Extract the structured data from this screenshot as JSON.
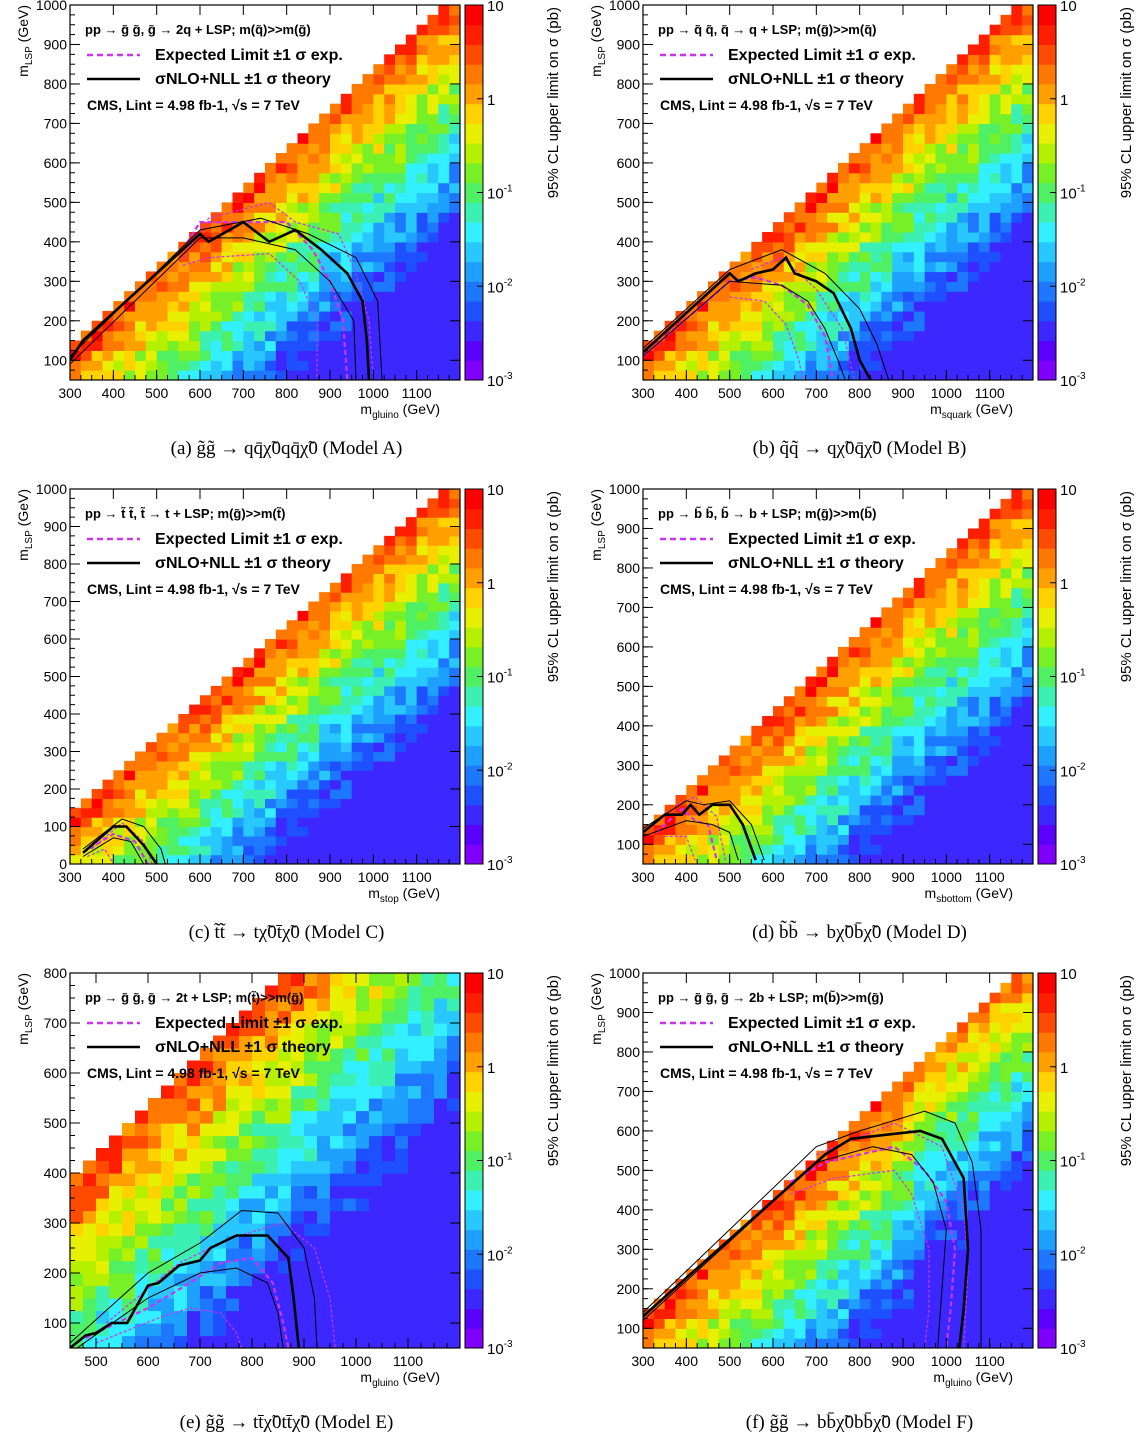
{
  "colorbar": {
    "title": "95% CL upper limit on σ (pb)",
    "tick_labels": [
      "10",
      "1",
      "10-1",
      "10-2",
      "10-3"
    ],
    "log_scale": true,
    "range": [
      0.001,
      10
    ],
    "colors": [
      "#8000ff",
      "#5a00ff",
      "#3c28ff",
      "#1e50ff",
      "#1e78ff",
      "#1ea0ff",
      "#28c8ff",
      "#32f0ff",
      "#3cf0b4",
      "#50f064",
      "#78f028",
      "#b4f000",
      "#e6f000",
      "#ffd200",
      "#ffa000",
      "#ff7800",
      "#ff4b00",
      "#ff1e00",
      "#ff0000"
    ]
  },
  "legend": {
    "expected": "Expected Limit ±1 σ exp.",
    "theory": "σNLO+NLL ±1 σ theory",
    "cms": "CMS, Lint = 4.98 fb-1, √s = 7 TeV",
    "expected_color": "#cc33ee",
    "theory_color": "#000000"
  },
  "charts": [
    {
      "id": "a",
      "process": "pp → g̃ g̃, g̃ → 2q + LSP; m(q̃)>>m(g̃)",
      "xlabel": "mgluino (GeV)",
      "ylabel": "mLSP (GeV)",
      "xlim": [
        300,
        1200
      ],
      "ylim": [
        50,
        1000
      ],
      "xticks": [
        "300",
        "400",
        "500",
        "600",
        "700",
        "800",
        "900",
        "1000",
        "1100"
      ],
      "yticks": [
        "100",
        "200",
        "300",
        "400",
        "500",
        "600",
        "700",
        "800",
        "900",
        "1000"
      ],
      "caption": "(a) g̃g̃ → qq̄χ̃0qq̄χ̃0 (Model A)"
    },
    {
      "id": "b",
      "process": "pp → q̃ q̃, q̃ → q + LSP; m(g̃)>>m(q̃)",
      "xlabel": "msquark (GeV)",
      "ylabel": "mLSP (GeV)",
      "xlim": [
        300,
        1200
      ],
      "ylim": [
        50,
        1000
      ],
      "xticks": [
        "300",
        "400",
        "500",
        "600",
        "700",
        "800",
        "900",
        "1000",
        "1100"
      ],
      "yticks": [
        "100",
        "200",
        "300",
        "400",
        "500",
        "600",
        "700",
        "800",
        "900",
        "1000"
      ],
      "caption": "(b) q̃q̃ → qχ̃0q̄χ̃0 (Model B)"
    },
    {
      "id": "c",
      "process": "pp → t̃ t̃, t̃ → t + LSP; m(g̃)>>m(t̃)",
      "xlabel": "mstop (GeV)",
      "ylabel": "mLSP (GeV)",
      "xlim": [
        300,
        1200
      ],
      "ylim": [
        0,
        1000
      ],
      "xticks": [
        "300",
        "400",
        "500",
        "600",
        "700",
        "800",
        "900",
        "1000",
        "1100"
      ],
      "yticks": [
        "0",
        "100",
        "200",
        "300",
        "400",
        "500",
        "600",
        "700",
        "800",
        "900",
        "1000"
      ],
      "caption": "(c) t̃t̃ → tχ̃0t̄χ̃0 (Model C)"
    },
    {
      "id": "d",
      "process": "pp → b̃ b̃, b̃ → b + LSP; m(g̃)>>m(b̃)",
      "xlabel": "msbottom (GeV)",
      "ylabel": "mLSP (GeV)",
      "xlim": [
        300,
        1200
      ],
      "ylim": [
        50,
        1000
      ],
      "xticks": [
        "300",
        "400",
        "500",
        "600",
        "700",
        "800",
        "900",
        "1000",
        "1100"
      ],
      "yticks": [
        "100",
        "200",
        "300",
        "400",
        "500",
        "600",
        "700",
        "800",
        "900",
        "1000"
      ],
      "caption": "(d) b̃b̃ → bχ̃0b̄χ̃0 (Model D)"
    },
    {
      "id": "e",
      "process": "pp → g̃ g̃, g̃ → 2t + LSP; m(t̃)>>m(g̃)",
      "xlabel": "mgluino (GeV)",
      "ylabel": "mLSP (GeV)",
      "xlim": [
        450,
        1200
      ],
      "ylim": [
        50,
        800
      ],
      "xticks": [
        "500",
        "600",
        "700",
        "800",
        "900",
        "1000",
        "1100"
      ],
      "yticks": [
        "100",
        "200",
        "300",
        "400",
        "500",
        "600",
        "700",
        "800"
      ],
      "caption": "(e) g̃g̃ → tt̄χ̃0tt̄χ̃0 (Model E)"
    },
    {
      "id": "f",
      "process": "pp → g̃ g̃, g̃ → 2b + LSP; m(b̃)>>m(g̃)",
      "xlabel": "mgluino (GeV)",
      "ylabel": "mLSP (GeV)",
      "xlim": [
        300,
        1200
      ],
      "ylim": [
        50,
        1000
      ],
      "xticks": [
        "300",
        "400",
        "500",
        "600",
        "700",
        "800",
        "900",
        "1000",
        "1100"
      ],
      "yticks": [
        "100",
        "200",
        "300",
        "400",
        "500",
        "600",
        "700",
        "800",
        "900",
        "1000"
      ],
      "caption": "(f) g̃g̃ → bb̄χ̃0bb̄χ̃0 (Model F)"
    }
  ],
  "chart_data": [
    {
      "type": "heatmap",
      "panel": "a",
      "diag_offset": 200,
      "zrange": [
        0.001,
        10
      ],
      "theory": [
        [
          300,
          100
        ],
        [
          330,
          150
        ],
        [
          600,
          420
        ],
        [
          620,
          400
        ],
        [
          700,
          450
        ],
        [
          760,
          400
        ],
        [
          820,
          430
        ],
        [
          880,
          380
        ],
        [
          940,
          320
        ],
        [
          975,
          250
        ],
        [
          985,
          150
        ],
        [
          990,
          50
        ]
      ],
      "theory_up": [
        [
          300,
          110
        ],
        [
          600,
          430
        ],
        [
          740,
          460
        ],
        [
          850,
          420
        ],
        [
          960,
          360
        ],
        [
          1010,
          250
        ],
        [
          1020,
          50
        ]
      ],
      "theory_down": [
        [
          300,
          90
        ],
        [
          600,
          410
        ],
        [
          700,
          410
        ],
        [
          820,
          380
        ],
        [
          900,
          300
        ],
        [
          955,
          200
        ],
        [
          960,
          50
        ]
      ],
      "expected": [
        [
          560,
          380
        ],
        [
          600,
          450
        ],
        [
          800,
          450
        ],
        [
          860,
          380
        ],
        [
          900,
          300
        ],
        [
          930,
          200
        ],
        [
          940,
          50
        ]
      ],
      "expected_up": [
        [
          560,
          360
        ],
        [
          620,
          460
        ],
        [
          760,
          500
        ],
        [
          820,
          450
        ],
        [
          920,
          420
        ],
        [
          960,
          320
        ],
        [
          990,
          200
        ],
        [
          1000,
          50
        ]
      ],
      "expected_down": [
        [
          560,
          340
        ],
        [
          620,
          360
        ],
        [
          760,
          370
        ],
        [
          830,
          300
        ],
        [
          870,
          200
        ],
        [
          870,
          50
        ]
      ]
    },
    {
      "type": "heatmap",
      "panel": "b",
      "diag_offset": 200,
      "zrange": [
        0.001,
        10
      ],
      "theory": [
        [
          300,
          120
        ],
        [
          500,
          320
        ],
        [
          520,
          300
        ],
        [
          560,
          320
        ],
        [
          600,
          330
        ],
        [
          630,
          360
        ],
        [
          650,
          320
        ],
        [
          700,
          300
        ],
        [
          740,
          270
        ],
        [
          780,
          180
        ],
        [
          800,
          100
        ],
        [
          830,
          40
        ]
      ],
      "theory_up": [
        [
          300,
          130
        ],
        [
          500,
          330
        ],
        [
          620,
          380
        ],
        [
          720,
          320
        ],
        [
          800,
          230
        ],
        [
          840,
          140
        ],
        [
          870,
          40
        ]
      ],
      "theory_down": [
        [
          300,
          110
        ],
        [
          500,
          300
        ],
        [
          620,
          290
        ],
        [
          680,
          250
        ],
        [
          720,
          180
        ],
        [
          750,
          100
        ],
        [
          770,
          40
        ]
      ],
      "expected": [
        [
          300,
          110
        ],
        [
          500,
          300
        ],
        [
          560,
          310
        ],
        [
          620,
          290
        ],
        [
          680,
          240
        ],
        [
          720,
          160
        ],
        [
          740,
          40
        ]
      ],
      "expected_up": [
        [
          550,
          330
        ],
        [
          620,
          360
        ],
        [
          700,
          280
        ],
        [
          760,
          180
        ],
        [
          790,
          40
        ]
      ],
      "expected_down": [
        [
          500,
          260
        ],
        [
          580,
          250
        ],
        [
          630,
          190
        ],
        [
          660,
          100
        ],
        [
          670,
          40
        ]
      ]
    },
    {
      "type": "heatmap",
      "panel": "c",
      "diag_offset": 200,
      "zrange": [
        0.001,
        10
      ],
      "theory": [
        [
          330,
          30
        ],
        [
          400,
          100
        ],
        [
          430,
          100
        ],
        [
          470,
          50
        ],
        [
          500,
          0
        ]
      ],
      "theory_up": [
        [
          330,
          40
        ],
        [
          420,
          120
        ],
        [
          470,
          100
        ],
        [
          510,
          40
        ],
        [
          520,
          0
        ]
      ],
      "theory_down": [
        [
          330,
          20
        ],
        [
          400,
          70
        ],
        [
          440,
          60
        ],
        [
          470,
          0
        ]
      ],
      "expected": [
        [
          330,
          30
        ],
        [
          400,
          80
        ],
        [
          450,
          60
        ],
        [
          480,
          0
        ]
      ],
      "expected_up": [
        [
          350,
          40
        ],
        [
          420,
          110
        ],
        [
          470,
          60
        ],
        [
          490,
          0
        ]
      ],
      "expected_down": [
        [
          340,
          20
        ],
        [
          380,
          40
        ],
        [
          400,
          0
        ]
      ]
    },
    {
      "type": "heatmap",
      "panel": "d",
      "diag_offset": 200,
      "zrange": [
        0.001,
        10
      ],
      "theory": [
        [
          300,
          130
        ],
        [
          350,
          175
        ],
        [
          390,
          175
        ],
        [
          410,
          200
        ],
        [
          430,
          175
        ],
        [
          460,
          200
        ],
        [
          500,
          200
        ],
        [
          530,
          150
        ],
        [
          560,
          60
        ]
      ],
      "theory_up": [
        [
          300,
          140
        ],
        [
          400,
          210
        ],
        [
          440,
          200
        ],
        [
          500,
          210
        ],
        [
          550,
          150
        ],
        [
          580,
          60
        ]
      ],
      "theory_down": [
        [
          300,
          120
        ],
        [
          400,
          160
        ],
        [
          460,
          150
        ],
        [
          500,
          130
        ],
        [
          520,
          60
        ]
      ],
      "expected": [
        [
          330,
          130
        ],
        [
          390,
          190
        ],
        [
          420,
          160
        ],
        [
          450,
          150
        ],
        [
          470,
          60
        ]
      ],
      "expected_up": [
        [
          380,
          200
        ],
        [
          420,
          220
        ],
        [
          470,
          170
        ],
        [
          490,
          60
        ]
      ],
      "expected_down": [
        [
          350,
          120
        ],
        [
          400,
          120
        ],
        [
          420,
          60
        ]
      ]
    },
    {
      "type": "heatmap",
      "panel": "e",
      "diag_offset": 100,
      "zrange": [
        0.001,
        10
      ],
      "theory": [
        [
          450,
          50
        ],
        [
          480,
          75
        ],
        [
          500,
          80
        ],
        [
          530,
          100
        ],
        [
          560,
          100
        ],
        [
          600,
          175
        ],
        [
          620,
          180
        ],
        [
          660,
          215
        ],
        [
          700,
          225
        ],
        [
          720,
          250
        ],
        [
          770,
          275
        ],
        [
          830,
          275
        ],
        [
          870,
          230
        ],
        [
          880,
          150
        ],
        [
          890,
          50
        ]
      ],
      "theory_up": [
        [
          450,
          60
        ],
        [
          600,
          200
        ],
        [
          700,
          260
        ],
        [
          780,
          325
        ],
        [
          850,
          320
        ],
        [
          900,
          250
        ],
        [
          920,
          150
        ],
        [
          925,
          50
        ]
      ],
      "theory_down": [
        [
          450,
          40
        ],
        [
          600,
          150
        ],
        [
          700,
          200
        ],
        [
          770,
          210
        ],
        [
          830,
          180
        ],
        [
          850,
          120
        ],
        [
          860,
          50
        ]
      ],
      "expected": [
        [
          480,
          70
        ],
        [
          600,
          130
        ],
        [
          680,
          180
        ],
        [
          740,
          220
        ],
        [
          800,
          230
        ],
        [
          840,
          180
        ],
        [
          860,
          100
        ],
        [
          870,
          50
        ]
      ],
      "expected_up": [
        [
          520,
          100
        ],
        [
          660,
          220
        ],
        [
          760,
          270
        ],
        [
          860,
          300
        ],
        [
          920,
          250
        ],
        [
          950,
          150
        ],
        [
          960,
          50
        ]
      ],
      "expected_down": [
        [
          500,
          60
        ],
        [
          620,
          110
        ],
        [
          680,
          130
        ],
        [
          740,
          120
        ],
        [
          770,
          80
        ],
        [
          780,
          50
        ]
      ]
    },
    {
      "type": "heatmap",
      "panel": "f",
      "diag_offset": 200,
      "zrange": [
        0.001,
        10
      ],
      "theory": [
        [
          300,
          130
        ],
        [
          720,
          540
        ],
        [
          780,
          580
        ],
        [
          940,
          600
        ],
        [
          990,
          580
        ],
        [
          1040,
          480
        ],
        [
          1050,
          300
        ],
        [
          1040,
          150
        ],
        [
          1030,
          50
        ]
      ],
      "theory_up": [
        [
          300,
          140
        ],
        [
          700,
          560
        ],
        [
          800,
          600
        ],
        [
          950,
          650
        ],
        [
          1020,
          620
        ],
        [
          1060,
          520
        ],
        [
          1080,
          350
        ],
        [
          1080,
          50
        ]
      ],
      "theory_down": [
        [
          300,
          120
        ],
        [
          700,
          520
        ],
        [
          830,
          560
        ],
        [
          920,
          540
        ],
        [
          970,
          470
        ],
        [
          1000,
          350
        ],
        [
          990,
          200
        ],
        [
          980,
          50
        ]
      ],
      "expected": [
        [
          640,
          470
        ],
        [
          720,
          520
        ],
        [
          880,
          560
        ],
        [
          950,
          500
        ],
        [
          1000,
          420
        ],
        [
          1020,
          300
        ],
        [
          1010,
          150
        ],
        [
          1000,
          50
        ]
      ],
      "expected_up": [
        [
          700,
          540
        ],
        [
          880,
          620
        ],
        [
          990,
          560
        ],
        [
          1040,
          400
        ],
        [
          1050,
          250
        ],
        [
          1040,
          50
        ]
      ],
      "expected_down": [
        [
          640,
          440
        ],
        [
          740,
          480
        ],
        [
          880,
          500
        ],
        [
          920,
          440
        ],
        [
          960,
          300
        ],
        [
          960,
          150
        ],
        [
          950,
          50
        ]
      ]
    }
  ]
}
